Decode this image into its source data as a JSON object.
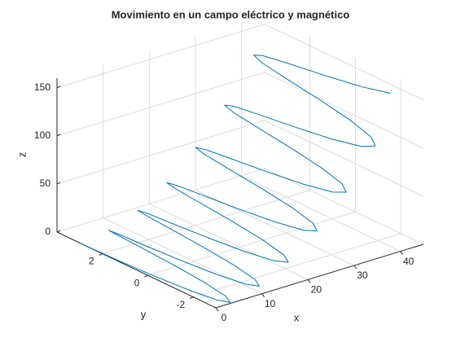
{
  "chart_data": {
    "type": "line3d",
    "title": "Movimiento en un campo eléctrico y magnético",
    "xlabel": "x",
    "ylabel": "y",
    "zlabel": "z",
    "color": "#0072bd",
    "grid": true,
    "xlim": [
      0,
      45
    ],
    "ylim": [
      -3,
      4
    ],
    "zlim": [
      0,
      160
    ],
    "xticks": [
      0,
      10,
      20,
      30,
      40
    ],
    "yticks": [
      -2,
      0,
      2
    ],
    "zticks": [
      0,
      50,
      100,
      150
    ],
    "x": [
      0,
      0.02,
      0.18,
      0.57,
      1.23,
      2.12,
      3.14,
      4.17,
      5.05,
      5.71,
      6.1,
      6.26,
      6.28,
      6.31,
      6.46,
      6.85,
      7.51,
      8.4,
      9.42,
      10.45,
      11.34,
      12.0,
      12.39,
      12.54,
      12.57,
      12.59,
      12.75,
      13.14,
      13.79,
      14.68,
      15.71,
      16.73,
      17.62,
      18.28,
      18.67,
      18.83,
      18.85,
      18.87,
      19.03,
      19.42,
      20.08,
      20.97,
      21.99,
      23.01,
      23.9,
      24.56,
      24.95,
      25.11,
      25.13,
      25.16,
      25.31,
      25.7,
      26.36,
      27.25,
      28.27,
      29.3,
      30.19,
      30.85,
      31.24,
      31.39,
      31.42,
      31.44,
      31.6,
      31.99,
      32.64,
      33.53,
      34.56,
      35.58,
      36.47,
      37.13,
      37.52,
      37.68,
      37.7,
      37.72,
      37.88,
      38.27,
      38.93,
      39.82
    ],
    "y": [
      3,
      2.6,
      1.5,
      0,
      -1.5,
      -2.6,
      -3,
      -2.6,
      -1.5,
      0,
      1.5,
      2.6,
      3,
      2.6,
      1.5,
      0,
      -1.5,
      -2.6,
      -3,
      -2.6,
      -1.5,
      0,
      1.5,
      2.6,
      3,
      2.6,
      1.5,
      0,
      -1.5,
      -2.6,
      -3,
      -2.6,
      -1.5,
      0,
      1.5,
      2.6,
      3,
      2.6,
      1.5,
      0,
      -1.5,
      -2.6,
      -3,
      -2.6,
      -1.5,
      0,
      1.5,
      2.6,
      3,
      2.6,
      1.5,
      0,
      -1.5,
      -2.6,
      -3,
      -2.6,
      -1.5,
      0,
      1.5,
      2.6,
      3,
      2.6,
      1.5,
      0,
      -1.5,
      -2.6,
      -3,
      -2.6,
      -1.5,
      0,
      1.5,
      2.6,
      3,
      2.6,
      1.5,
      0,
      -1.5,
      -2.6
    ],
    "z": [
      0,
      0.0,
      0.1,
      0.2,
      0.4,
      0.7,
      1.0,
      1.3,
      1.7,
      2.2,
      2.7,
      3.3,
      3.9,
      4.6,
      5.3,
      6.1,
      6.9,
      7.8,
      8.7,
      9.7,
      10.8,
      11.9,
      13.1,
      14.3,
      15.5,
      16.9,
      18.2,
      19.7,
      21.2,
      22.7,
      24.3,
      25.9,
      27.6,
      29.4,
      31.2,
      33.1,
      35.0,
      36.9,
      39.0,
      41.0,
      43.2,
      45.4,
      47.6,
      49.9,
      52.2,
      54.6,
      57.1,
      59.6,
      62.2,
      64.8,
      67.5,
      70.2,
      73.0,
      75.8,
      78.7,
      81.6,
      84.6,
      87.7,
      90.8,
      93.9,
      97.1,
      100.4,
      103.7,
      107.1,
      110.5,
      114.0,
      117.6,
      121.1,
      124.8,
      128.5,
      132.2,
      136.0,
      139.9,
      143.8,
      147.8,
      151.8,
      155.9,
      160.0
    ]
  }
}
